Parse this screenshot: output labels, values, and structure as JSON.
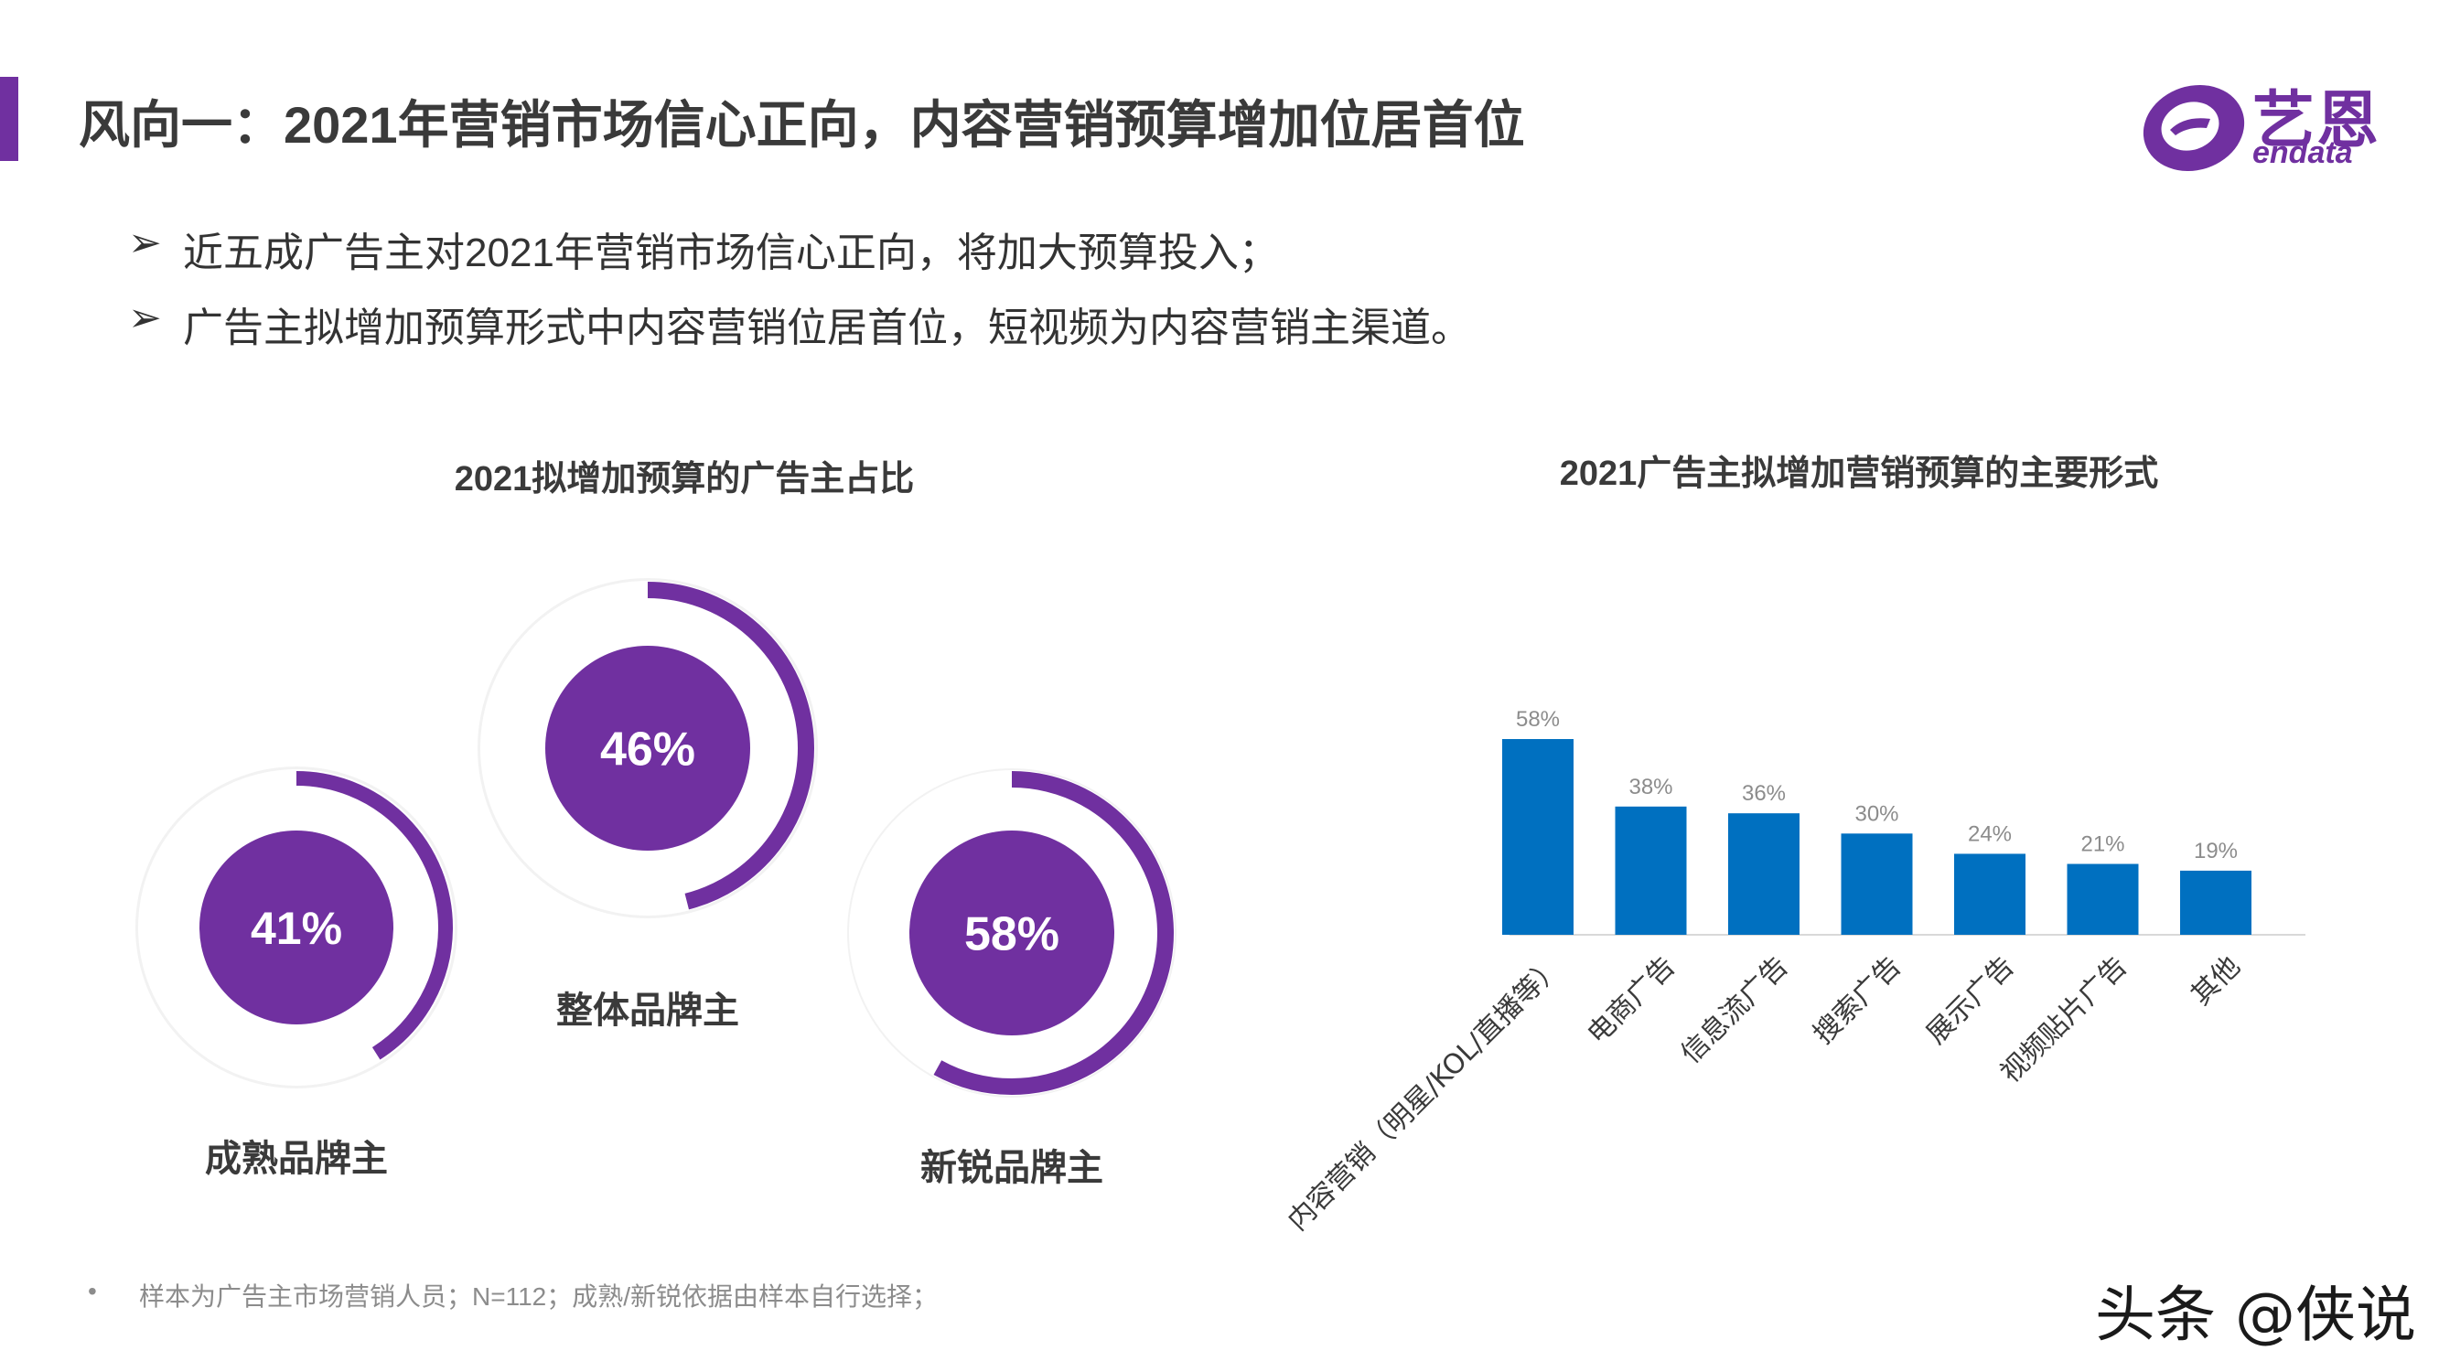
{
  "header": {
    "title": "风向一：2021年营销市场信心正向，内容营销预算增加位居首位",
    "accent_color": "#7030a0"
  },
  "logo": {
    "cn": "艺恩",
    "en": "endata",
    "icon": "endata-e-logo-icon"
  },
  "bullets": [
    {
      "marker": "➢",
      "text": "近五成广告主对2021年营销市场信心正向，将加大预算投入；"
    },
    {
      "marker": "➢",
      "text": "广告主拟增加预算形式中内容营销位居首位，短视频为内容营销主渠道。"
    }
  ],
  "chart_data": [
    {
      "type": "pie",
      "title": "2021拟增加预算的广告主占比",
      "style": "donut-rings",
      "colors": {
        "fill": "#7030a0",
        "track": "#f2f2f2"
      },
      "series": [
        {
          "name": "成熟品牌主",
          "value": 41,
          "label": "41%"
        },
        {
          "name": "整体品牌主",
          "value": 46,
          "label": "46%"
        },
        {
          "name": "新锐品牌主",
          "value": 58,
          "label": "58%"
        }
      ]
    },
    {
      "type": "bar",
      "title": "2021广告主拟增加营销预算的主要形式",
      "categories": [
        "内容营销（明星/KOL/直播等）",
        "电商广告",
        "信息流广告",
        "搜索广告",
        "展示广告",
        "视频贴片广告",
        "其他"
      ],
      "values": [
        58,
        38,
        36,
        30,
        24,
        21,
        19
      ],
      "data_labels": [
        "58%",
        "38%",
        "36%",
        "30%",
        "24%",
        "21%",
        "19%"
      ],
      "ylim": [
        0,
        58
      ],
      "bar_color": "#0070c0",
      "grid": false
    }
  ],
  "footnote": {
    "marker": "•",
    "text": "样本为广告主市场营销人员；N=112；成熟/新锐依据由样本自行选择；"
  },
  "watermark": "头条 @侠说"
}
